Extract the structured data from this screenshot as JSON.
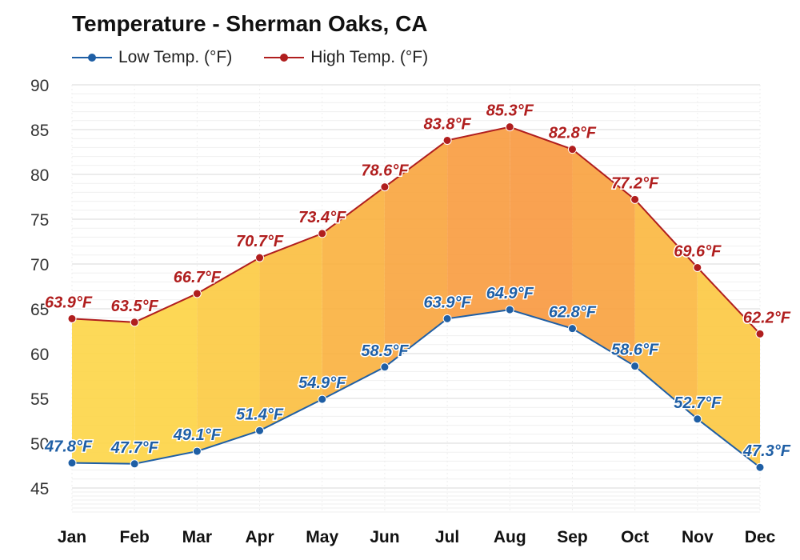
{
  "chart_data": {
    "type": "line",
    "title": "Temperature - Sherman Oaks, CA",
    "categories": [
      "Jan",
      "Feb",
      "Mar",
      "Apr",
      "May",
      "Jun",
      "Jul",
      "Aug",
      "Sep",
      "Oct",
      "Nov",
      "Dec"
    ],
    "series": [
      {
        "name": "Low Temp. (°F)",
        "color": "#1f5fa5",
        "values": [
          47.8,
          47.7,
          49.1,
          51.4,
          54.9,
          58.5,
          63.9,
          64.9,
          62.8,
          58.6,
          52.7,
          47.3
        ],
        "labels": [
          "47.8°F",
          "47.7°F",
          "49.1°F",
          "51.4°F",
          "54.9°F",
          "58.5°F",
          "63.9°F",
          "64.9°F",
          "62.8°F",
          "58.6°F",
          "52.7°F",
          "47.3°F"
        ]
      },
      {
        "name": "High Temp. (°F)",
        "color": "#b01e1e",
        "values": [
          63.9,
          63.5,
          66.7,
          70.7,
          73.4,
          78.6,
          83.8,
          85.3,
          82.8,
          77.2,
          69.6,
          62.2
        ],
        "labels": [
          "63.9°F",
          "63.5°F",
          "66.7°F",
          "70.7°F",
          "73.4°F",
          "78.6°F",
          "83.8°F",
          "85.3°F",
          "82.8°F",
          "77.2°F",
          "69.6°F",
          "62.2°F"
        ]
      }
    ],
    "ylim": [
      45,
      90
    ],
    "yticks": [
      45,
      50,
      55,
      60,
      65,
      70,
      75,
      80,
      85,
      90
    ],
    "ytick_labels": [
      "45",
      "50",
      "55",
      "60",
      "65",
      "70",
      "75",
      "80",
      "85",
      "90"
    ],
    "grid": true,
    "legend": "top-left",
    "band_colors": [
      "#fdd64a",
      "#fdd447",
      "#fccb44",
      "#fbbf42",
      "#fab241",
      "#f9a641",
      "#f89d42",
      "#f89a42",
      "#f9a341",
      "#fbb842",
      "#fcc944",
      "#fdd94e"
    ]
  }
}
